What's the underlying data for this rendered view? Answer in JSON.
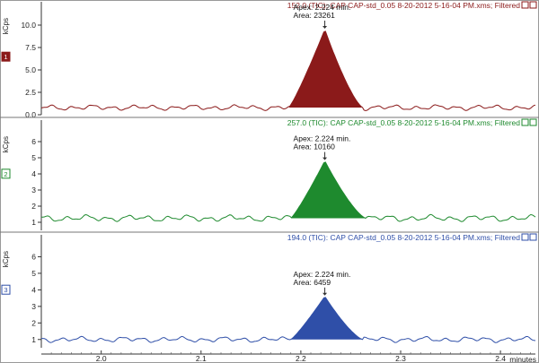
{
  "chart_data": [
    {
      "type": "line",
      "channel_badge": "1",
      "header": "152.0 (TIC):  CAP CAP-std_0.05 8-20-2012 5-16-04 PM.xms;  Filtered",
      "ylabel": "kCps",
      "y_ticks": [
        "0.0",
        "2.5",
        "5.0",
        "7.5",
        "10.0"
      ],
      "ylim": [
        0,
        12
      ],
      "apex_text": "Apex: 2.224 min.",
      "area_text": "Area: 23261",
      "color": "#8b1a1a",
      "baseline_level": 0.8,
      "peak": {
        "start": 2.188,
        "apex": 2.224,
        "end": 2.262,
        "height": 9.5
      },
      "noise_amp": 0.18
    },
    {
      "type": "line",
      "channel_badge": "2",
      "header": "257.0 (TIC):  CAP CAP-std_0.05 8-20-2012 5-16-04 PM.xms;  Filtered",
      "ylabel": "kCps",
      "y_ticks": [
        "1",
        "2",
        "3",
        "4",
        "5",
        "6"
      ],
      "ylim": [
        0.5,
        7
      ],
      "apex_text": "Apex: 2.224 min.",
      "area_text": "Area: 10160",
      "color": "#1e8a2e",
      "baseline_level": 1.25,
      "peak": {
        "start": 2.19,
        "apex": 2.224,
        "end": 2.265,
        "height": 4.8
      },
      "noise_amp": 0.12
    },
    {
      "type": "line",
      "channel_badge": "3",
      "header": "194.0 (TIC):  CAP CAP-std_0.05 8-20-2012 5-16-04 PM.xms;  Filtered",
      "ylabel": "kCps",
      "y_ticks": [
        "1",
        "2",
        "3",
        "4",
        "5",
        "6"
      ],
      "ylim": [
        0.5,
        7
      ],
      "apex_text": "Apex: 2.224 min.",
      "area_text": "Area: 6459",
      "color": "#2f4fa8",
      "baseline_level": 1.0,
      "peak": {
        "start": 2.19,
        "apex": 2.224,
        "end": 2.262,
        "height": 3.6
      },
      "noise_amp": 0.1
    }
  ],
  "x_axis": {
    "ticks": [
      "2.0",
      "2.1",
      "2.2",
      "2.3",
      "2.4"
    ],
    "xlim": [
      1.94,
      2.435
    ],
    "label": "minutes"
  }
}
